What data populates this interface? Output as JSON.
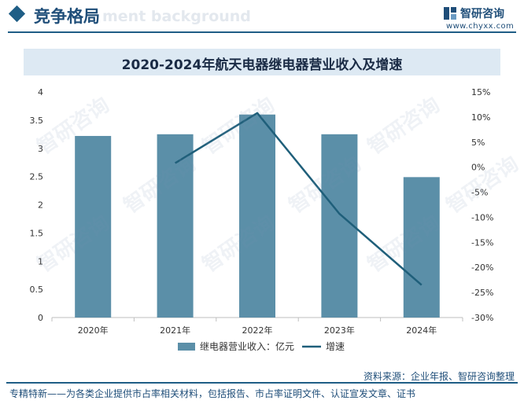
{
  "header": {
    "title": "竞争格局",
    "ghost": "ment background"
  },
  "logo": {
    "name": "智研咨询",
    "url": "www.chyxx.com"
  },
  "chart_data": {
    "type": "bar",
    "title": "2020-2024年航天电器继电器营业收入及增速",
    "categories": [
      "2020年",
      "2021年",
      "2022年",
      "2023年",
      "2024年"
    ],
    "series": [
      {
        "name": "继电器营业收入：亿元",
        "type": "bar",
        "axis": "left",
        "values": [
          3.22,
          3.25,
          3.6,
          3.25,
          2.49
        ],
        "color": "#5b8fa8"
      },
      {
        "name": "增速",
        "type": "line",
        "axis": "right",
        "values": [
          null,
          0.8,
          10.8,
          -9.3,
          -23.5
        ],
        "color": "#1f5f7a"
      }
    ],
    "ylim": [
      0,
      4
    ],
    "yticks": [
      "0",
      "0.5",
      "1",
      "1.5",
      "2",
      "2.5",
      "3",
      "3.5",
      "4"
    ],
    "y2lim": [
      -30,
      15
    ],
    "y2ticks": [
      "-30%",
      "-25%",
      "-20%",
      "-15%",
      "-10%",
      "-5%",
      "0%",
      "5%",
      "10%",
      "15%"
    ],
    "legend": "bottom",
    "grid": false
  },
  "footer": {
    "source": "资料来源：企业年报、智研咨询整理",
    "note": "专精特新——为各类企业提供市占率相关材料，包括报告、市占率证明文件、认证宣发文章、证书"
  },
  "watermark": "智研咨询"
}
